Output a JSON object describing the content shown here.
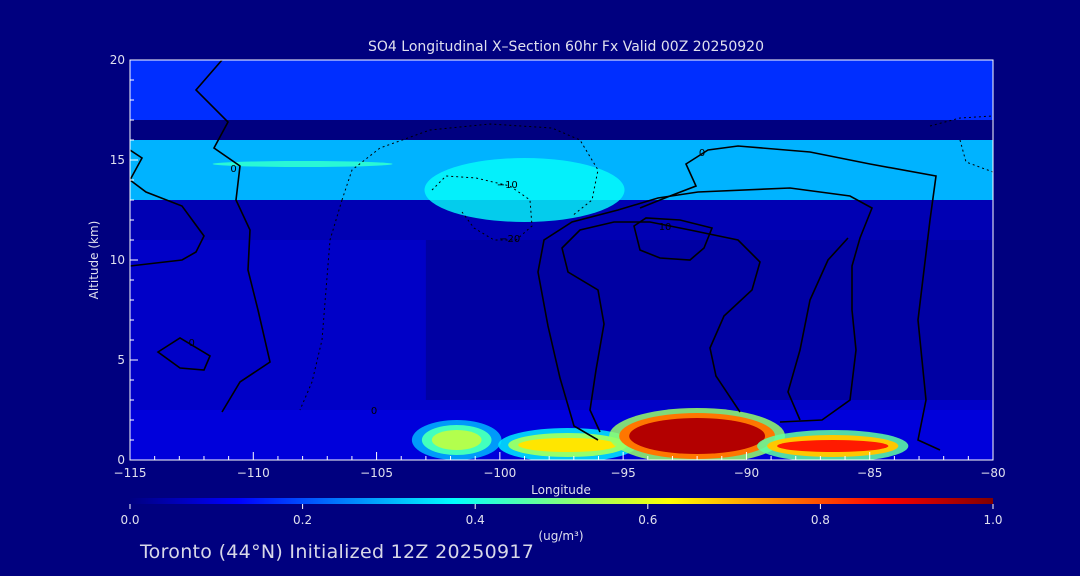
{
  "chart_data": {
    "type": "heatmap",
    "title": "SO4 Longitudinal X–Section 60hr  Fx Valid 00Z 20250920",
    "xlabel": "Longitude",
    "ylabel": "Altitude (km)",
    "xlim": [
      -115,
      -80
    ],
    "ylim": [
      0,
      20
    ],
    "x_ticks": [
      -115,
      -110,
      -105,
      -100,
      -95,
      -90,
      -85,
      -80
    ],
    "x_tick_labels": [
      "−115",
      "−110",
      "−105",
      "−100",
      "−95",
      "−90",
      "−85",
      "−80"
    ],
    "y_ticks": [
      0,
      5,
      10,
      15,
      20
    ],
    "y_tick_labels": [
      "0",
      "5",
      "10",
      "15",
      "20"
    ],
    "colorbar": {
      "min": 0.0,
      "max": 1.0,
      "ticks": [
        0.0,
        0.2,
        0.4,
        0.6,
        0.8,
        1.0
      ],
      "tick_labels": [
        "0.0",
        "0.2",
        "0.4",
        "0.6",
        "0.8",
        "1.0"
      ],
      "units": "(ug/m³)",
      "colormap": [
        "#000080",
        "#0000ff",
        "#0080ff",
        "#00ffff",
        "#80ff80",
        "#ffff00",
        "#ff8000",
        "#ff0000",
        "#800000"
      ]
    },
    "field_layers": [
      {
        "alt": [
          17,
          20
        ],
        "value": 0.17
      },
      {
        "alt": [
          13,
          16
        ],
        "value": 0.3
      },
      {
        "alt": [
          11,
          13
        ],
        "value": 0.05
      },
      {
        "alt": [
          2.5,
          11
        ],
        "value": 0.07
      },
      {
        "alt": [
          0,
          2.5
        ],
        "value": 0.09
      }
    ],
    "high_features": [
      {
        "lon": [
          -103,
          -100.5
        ],
        "alt": [
          0.4,
          1.6
        ],
        "value": 0.55
      },
      {
        "lon": [
          -99.5,
          -95
        ],
        "alt": [
          0.3,
          1.2
        ],
        "value": 0.65
      },
      {
        "lon": [
          -95,
          -89
        ],
        "alt": [
          0.2,
          2.2
        ],
        "value": 0.95
      },
      {
        "lon": [
          -89,
          -84
        ],
        "alt": [
          0.3,
          1.1
        ],
        "value": 0.85
      }
    ],
    "contour_labels": [
      {
        "text": "0",
        "lon": -110.8,
        "alt": 14.4
      },
      {
        "text": "0",
        "lon": -112.5,
        "alt": 5.7
      },
      {
        "text": "0",
        "lon": -91.8,
        "alt": 15.2
      },
      {
        "text": "0",
        "lon": -105.1,
        "alt": 2.3
      },
      {
        "text": "−10",
        "lon": -99.7,
        "alt": 13.6
      },
      {
        "text": "−20",
        "lon": -99.6,
        "alt": 10.9
      },
      {
        "text": "10",
        "lon": -93.3,
        "alt": 11.5
      }
    ]
  },
  "footer": "Toronto (44°N) Initialized 12Z 20250917"
}
